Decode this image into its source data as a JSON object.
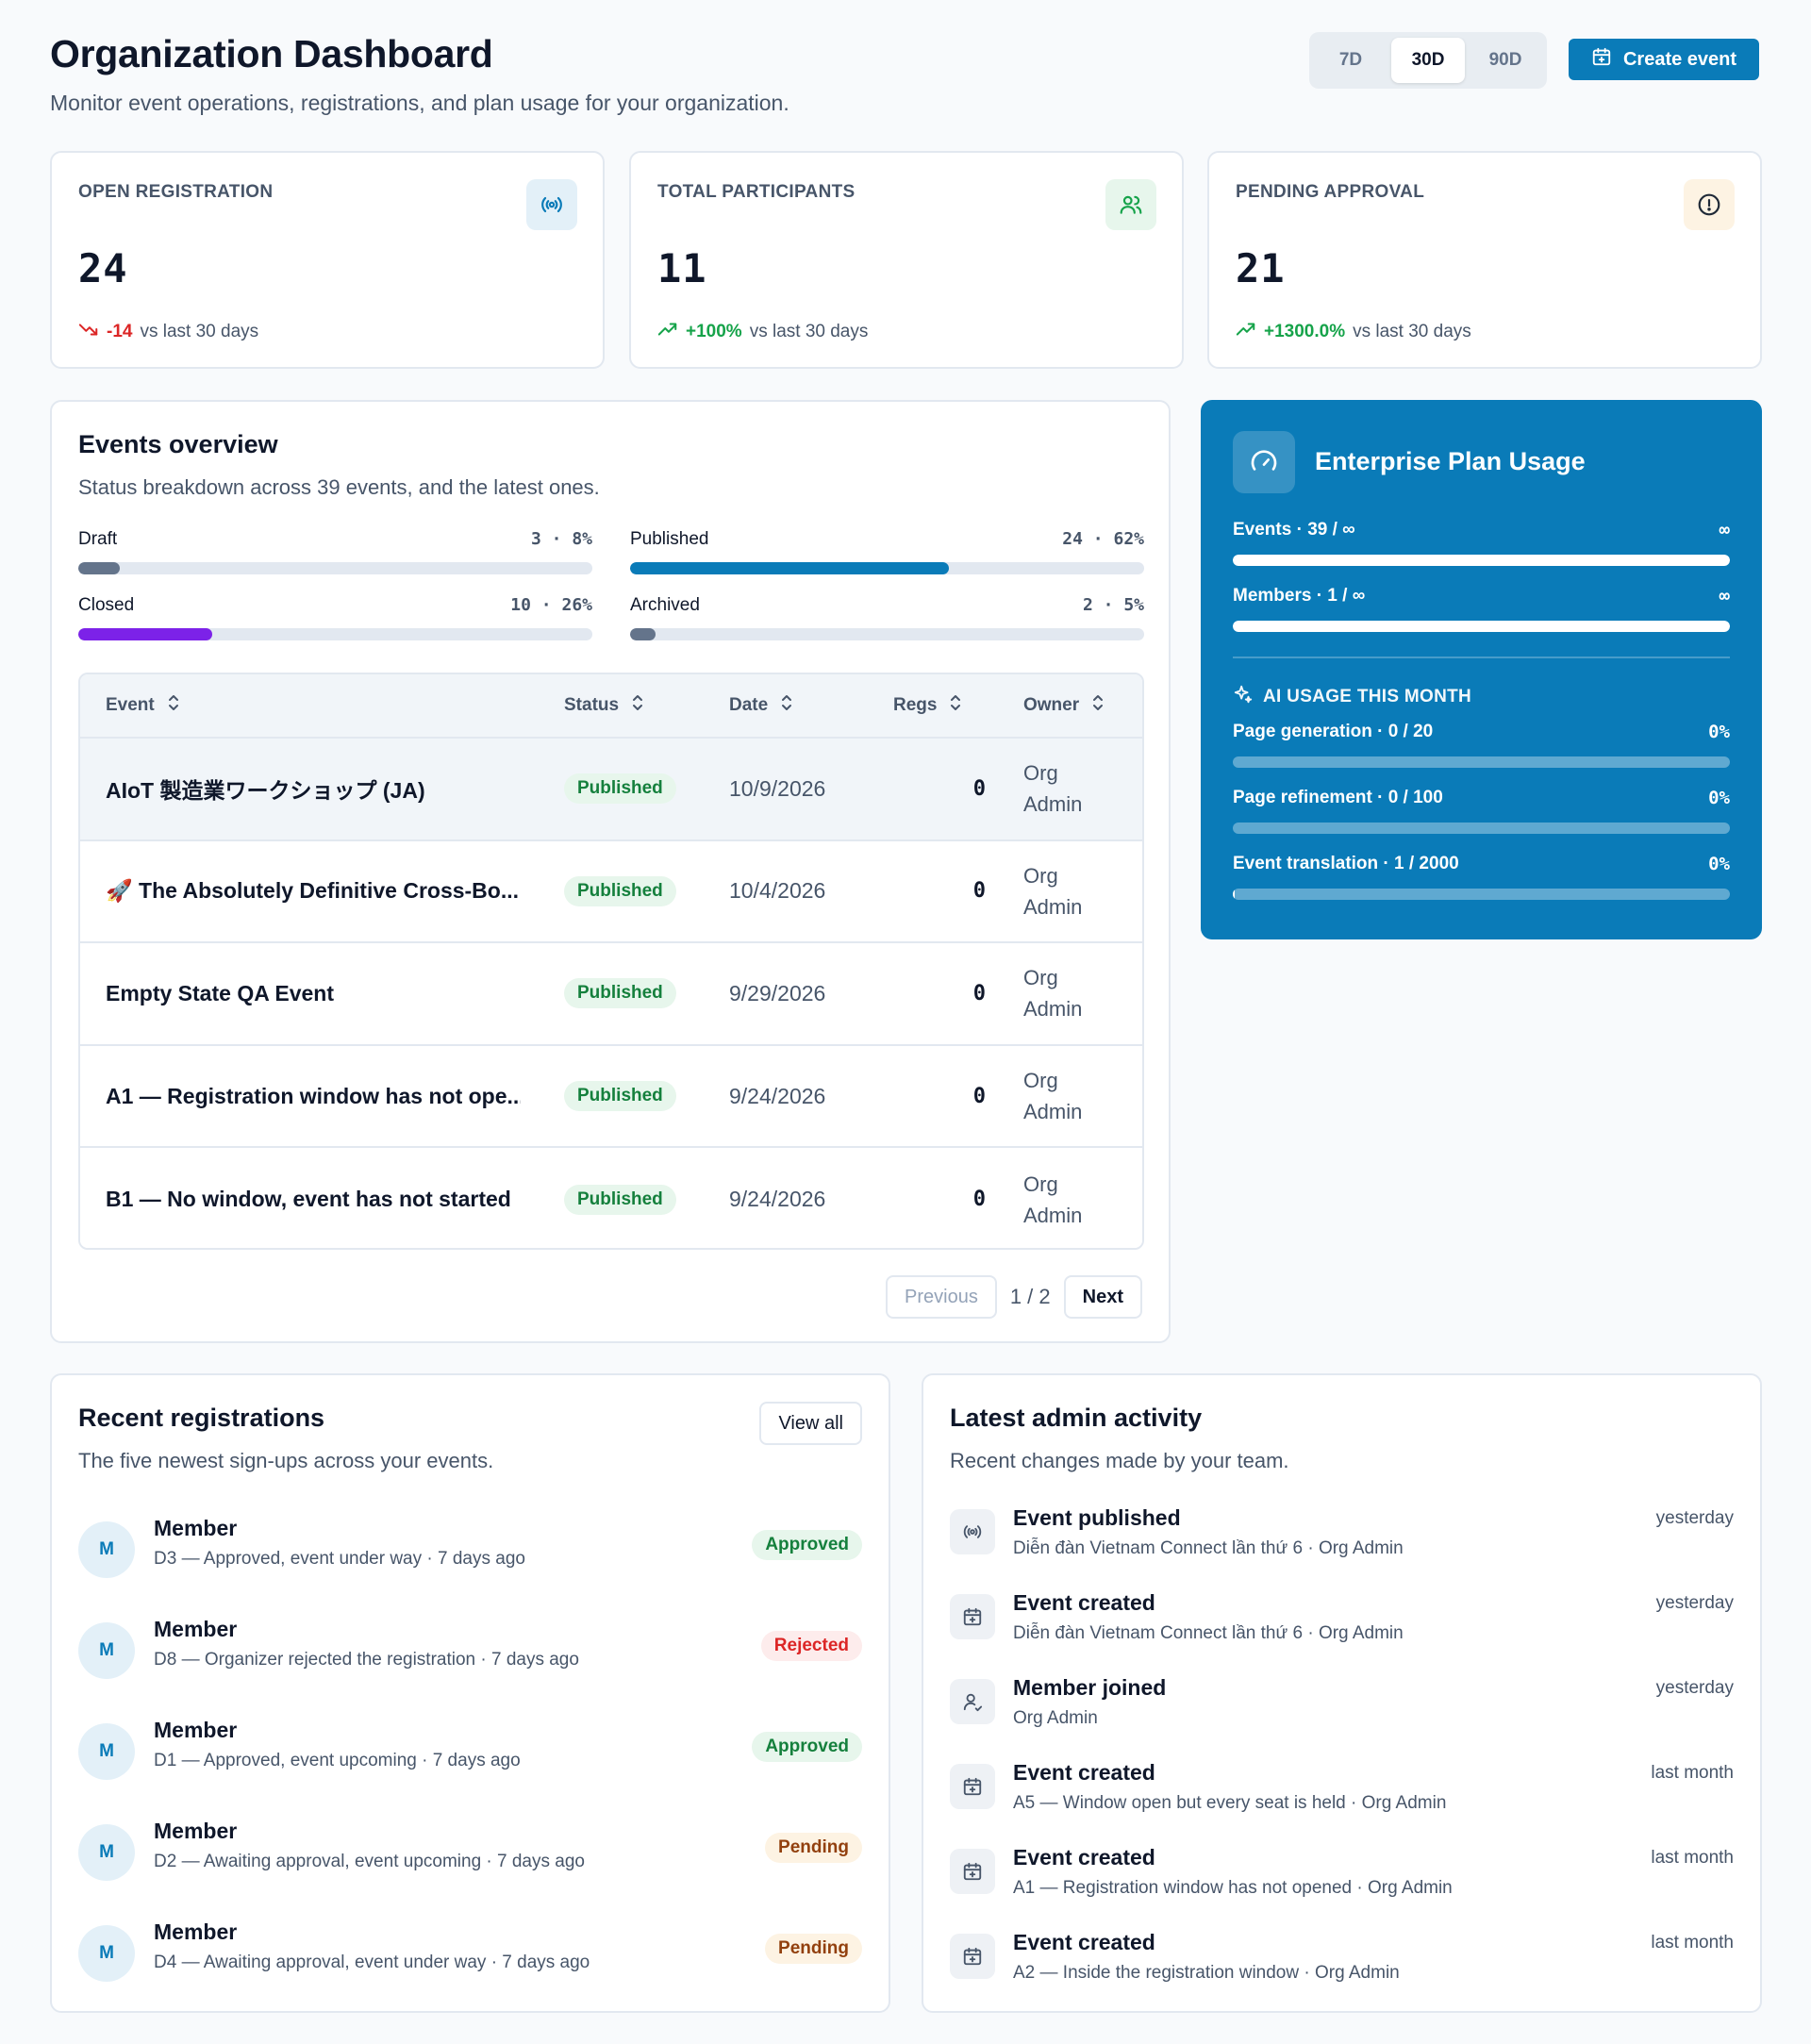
{
  "header": {
    "title": "Organization Dashboard",
    "subtitle": "Monitor event operations, registrations, and plan usage for your organization.",
    "ranges": [
      "7D",
      "30D",
      "90D"
    ],
    "active_range": "30D",
    "create_label": "Create event"
  },
  "stats": [
    {
      "label": "OPEN REGISTRATION",
      "value": "24",
      "delta": "-14",
      "delta_trend": "down",
      "compare": "vs last 30 days",
      "icon": "broadcast-icon"
    },
    {
      "label": "TOTAL PARTICIPANTS",
      "value": "11",
      "delta": "+100%",
      "delta_trend": "up",
      "compare": "vs last 30 days",
      "icon": "users-icon"
    },
    {
      "label": "PENDING APPROVAL",
      "value": "21",
      "delta": "+1300.0%",
      "delta_trend": "up",
      "compare": "vs last 30 days",
      "icon": "alert-circle-icon"
    }
  ],
  "overview": {
    "title": "Events overview",
    "subtitle": "Status breakdown across 39 events, and the latest ones.",
    "statuses": [
      {
        "label": "Draft",
        "count": "3",
        "pct": "8%",
        "fraction": 0.08,
        "color": "#64748b"
      },
      {
        "label": "Published",
        "count": "24",
        "pct": "62%",
        "fraction": 0.62,
        "color": "#0a7bb8"
      },
      {
        "label": "Closed",
        "count": "10",
        "pct": "26%",
        "fraction": 0.26,
        "color": "#7c22e8"
      },
      {
        "label": "Archived",
        "count": "2",
        "pct": "5%",
        "fraction": 0.05,
        "color": "#64748b"
      }
    ],
    "columns": [
      "Event",
      "Status",
      "Date",
      "Regs",
      "Owner"
    ],
    "rows": [
      {
        "event": "AIoT 製造業ワークショップ (JA)",
        "status": "Published",
        "date": "10/9/2026",
        "regs": "0",
        "owner_line1": "Org",
        "owner_line2": "Admin"
      },
      {
        "event": "🚀 The Absolutely Definitive Cross-Bo...",
        "status": "Published",
        "date": "10/4/2026",
        "regs": "0",
        "owner_line1": "Org",
        "owner_line2": "Admin"
      },
      {
        "event": "Empty State QA Event",
        "status": "Published",
        "date": "9/29/2026",
        "regs": "0",
        "owner_line1": "Org",
        "owner_line2": "Admin"
      },
      {
        "event": "A1 — Registration window has not ope...",
        "status": "Published",
        "date": "9/24/2026",
        "regs": "0",
        "owner_line1": "Org",
        "owner_line2": "Admin"
      },
      {
        "event": "B1 — No window, event has not started",
        "status": "Published",
        "date": "9/24/2026",
        "regs": "0",
        "owner_line1": "Org",
        "owner_line2": "Admin"
      }
    ],
    "pager": {
      "prev": "Previous",
      "page": "1 / 2",
      "next": "Next"
    }
  },
  "plan": {
    "title": "Enterprise Plan Usage",
    "limits": [
      {
        "label": "Events · 39 / ∞",
        "right": "∞",
        "fraction": 1.0
      },
      {
        "label": "Members · 1 / ∞",
        "right": "∞",
        "fraction": 1.0
      }
    ],
    "ai_heading": "AI USAGE THIS MONTH",
    "ai": [
      {
        "label": "Page generation · 0 / 20",
        "pct": "0%",
        "fraction": 0
      },
      {
        "label": "Page refinement · 0 / 100",
        "pct": "0%",
        "fraction": 0
      },
      {
        "label": "Event translation · 1 / 2000",
        "pct": "0%",
        "fraction": 0.0005
      }
    ]
  },
  "registrations": {
    "title": "Recent registrations",
    "subtitle": "The five newest sign-ups across your events.",
    "view_all": "View all",
    "items": [
      {
        "initial": "M",
        "name": "Member",
        "detail": "D3 — Approved, event under way · 7 days ago",
        "status": "Approved",
        "tone": "green"
      },
      {
        "initial": "M",
        "name": "Member",
        "detail": "D8 — Organizer rejected the registration · 7 days ago",
        "status": "Rejected",
        "tone": "red"
      },
      {
        "initial": "M",
        "name": "Member",
        "detail": "D1 — Approved, event upcoming · 7 days ago",
        "status": "Approved",
        "tone": "green"
      },
      {
        "initial": "M",
        "name": "Member",
        "detail": "D2 — Awaiting approval, event upcoming · 7 days ago",
        "status": "Pending",
        "tone": "amber"
      },
      {
        "initial": "M",
        "name": "Member",
        "detail": "D4 — Awaiting approval, event under way · 7 days ago",
        "status": "Pending",
        "tone": "amber"
      }
    ]
  },
  "activity": {
    "title": "Latest admin activity",
    "subtitle": "Recent changes made by your team.",
    "items": [
      {
        "icon": "broadcast-icon",
        "title": "Event published",
        "detail": "Diễn đàn Vietnam Connect lần thứ 6 · Org Admin",
        "time": "yesterday"
      },
      {
        "icon": "calendar-plus-icon",
        "title": "Event created",
        "detail": "Diễn đàn Vietnam Connect lần thứ 6 · Org Admin",
        "time": "yesterday"
      },
      {
        "icon": "user-icon",
        "title": "Member joined",
        "detail": "Org Admin",
        "time": "yesterday"
      },
      {
        "icon": "calendar-plus-icon",
        "title": "Event created",
        "detail": "A5 — Window open but every seat is held · Org Admin",
        "time": "last month"
      },
      {
        "icon": "calendar-plus-icon",
        "title": "Event created",
        "detail": "A1 — Registration window has not opened · Org Admin",
        "time": "last month"
      },
      {
        "icon": "calendar-plus-icon",
        "title": "Event created",
        "detail": "A2 — Inside the registration window · Org Admin",
        "time": "last month"
      }
    ]
  }
}
